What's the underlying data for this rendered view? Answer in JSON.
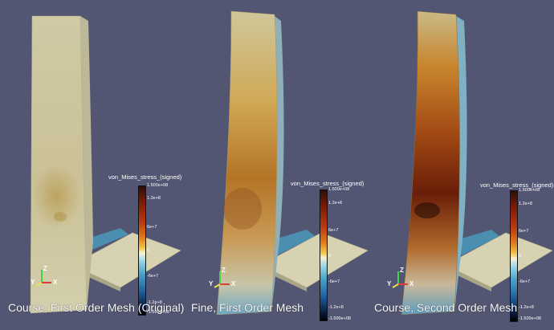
{
  "colors": {
    "background": "#525672",
    "plate": "#d6d2b2",
    "rib": "#4a8fb0"
  },
  "panels": [
    {
      "caption": "Course, First Order Mesh (Original)",
      "colorbar": {
        "title": "von_Mises_stress_(signed)",
        "ticks": [
          "1.500e+08",
          "1.2e+8",
          "6e+7",
          "0",
          "-6e+7",
          "-1.2e+8",
          "-1.500e+08"
        ]
      },
      "axes": {
        "x": "X",
        "y": "Y",
        "z": "Z"
      }
    },
    {
      "caption": "Fine, First Order Mesh",
      "colorbar": {
        "title": "von_Mises_stress_(signed)",
        "ticks": [
          "1.500e+08",
          "1.2e+8",
          "6e+7",
          "0",
          "-6e+7",
          "-1.2e+8",
          "-1.500e+08"
        ]
      },
      "axes": {
        "x": "X",
        "y": "Y",
        "z": "Z"
      }
    },
    {
      "caption": "Course, Second Order Mesh",
      "colorbar": {
        "title": "von_Mises_stress_(signed)",
        "ticks": [
          "1.500e+08",
          "1.2e+8",
          "6e+7",
          "0",
          "-6e+7",
          "-1.2e+8",
          "-1.500e+08"
        ]
      },
      "axes": {
        "x": "X",
        "y": "Y",
        "z": "Z"
      }
    }
  ]
}
